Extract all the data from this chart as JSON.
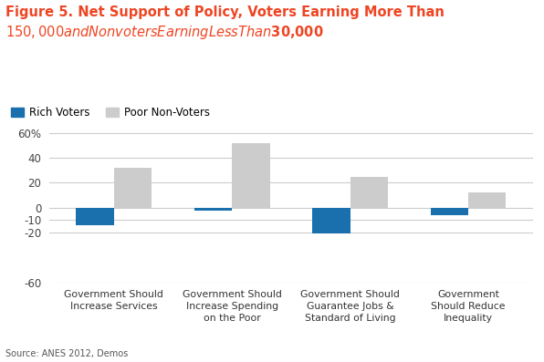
{
  "title_line1": "Figure 5. Net Support of Policy, Voters Earning More Than",
  "title_line2": "$150,000 and Nonvoters Earning Less Than $30,000",
  "title_color": "#EF4523",
  "categories": [
    "Government Should\nIncrease Services",
    "Government Should\nIncrease Spending\non the Poor",
    "Government Should\nGuarantee Jobs &\nStandard of Living",
    "Government\nShould Reduce\nInequality"
  ],
  "rich_voters": [
    -14,
    -2,
    -21,
    -6
  ],
  "poor_nonvoters": [
    32,
    52,
    25,
    12
  ],
  "rich_color": "#1A6FAD",
  "poor_color": "#CCCCCC",
  "legend_labels": [
    "Rich Voters",
    "Poor Non-Voters"
  ],
  "ytick_vals": [
    -60,
    -20,
    -10,
    0,
    20,
    40,
    60
  ],
  "ytick_labels": [
    "-60",
    "-20",
    "-10",
    "0",
    "20",
    "40",
    "60%"
  ],
  "grid_vals": [
    -60,
    -20,
    -10,
    0,
    20,
    40,
    60
  ],
  "ylim": [
    -28,
    68
  ],
  "source_text": "Source: ANES 2012, Demos",
  "background_color": "#FFFFFF",
  "grid_color": "#CCCCCC",
  "bar_width": 0.32
}
